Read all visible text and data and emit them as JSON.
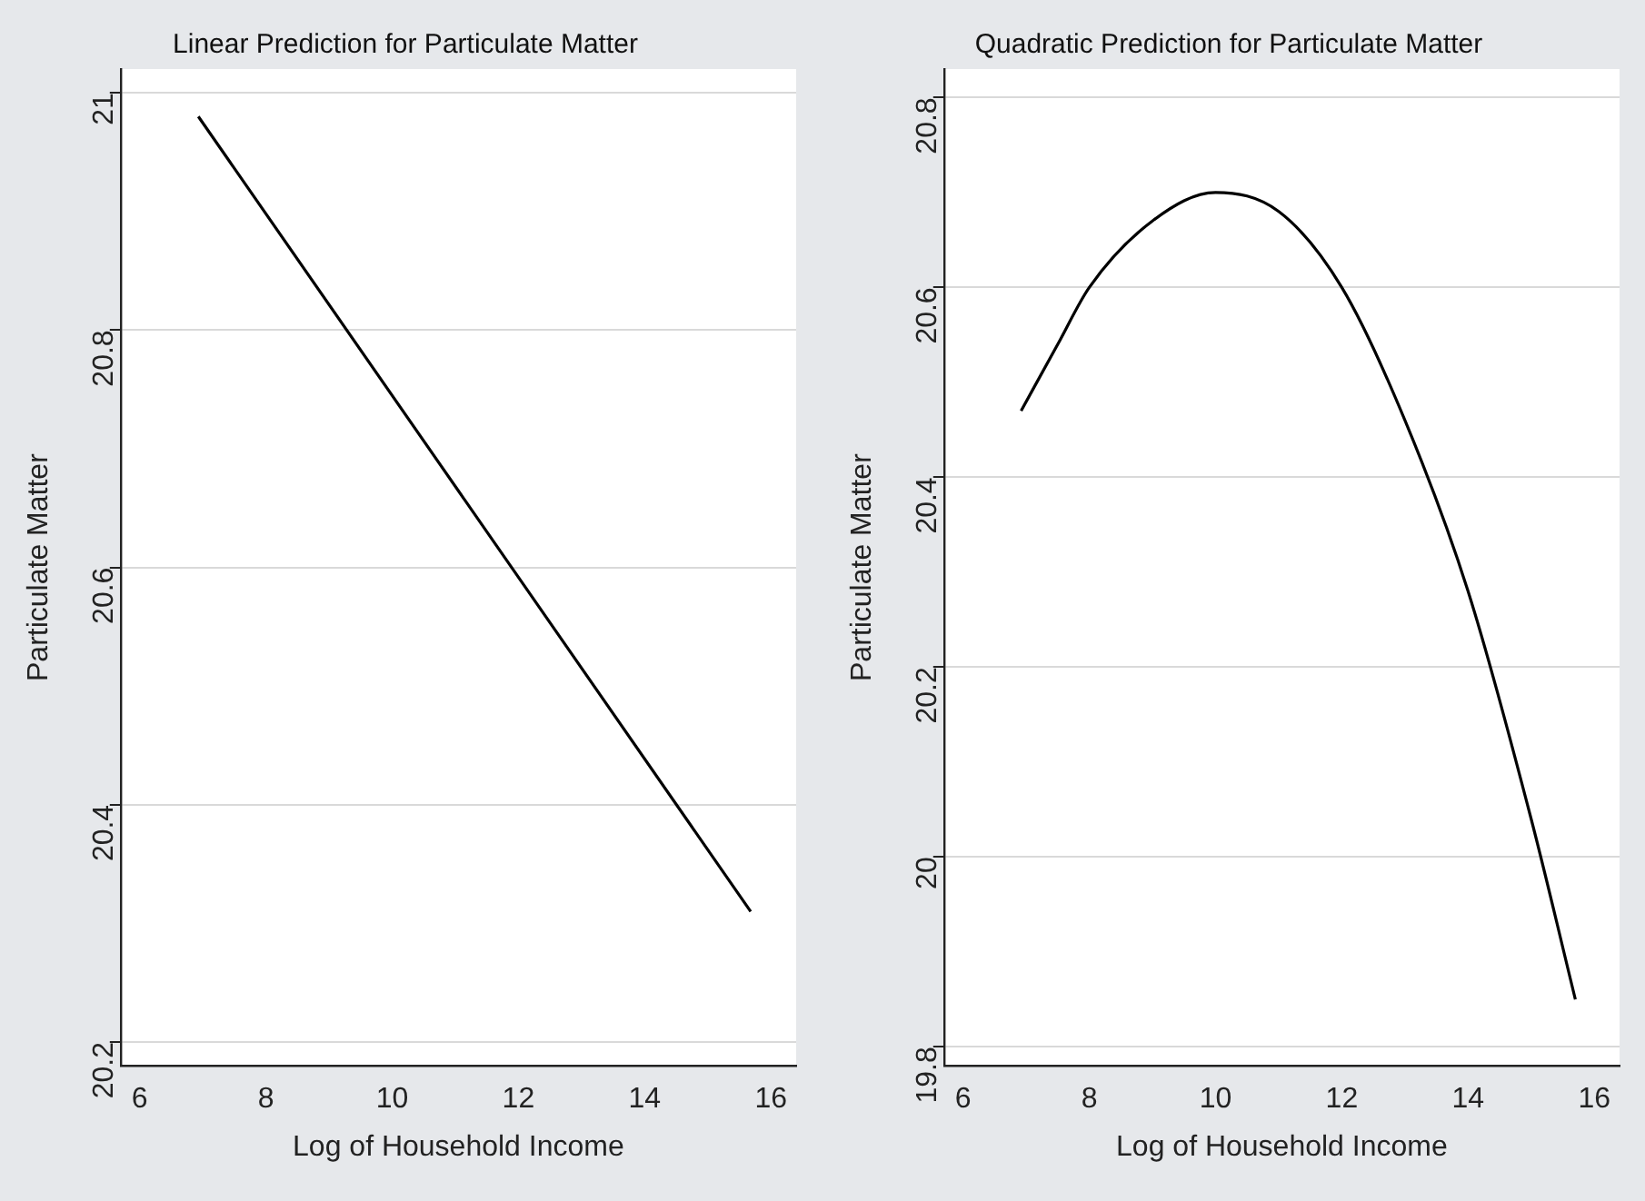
{
  "chart_data": [
    {
      "type": "line",
      "title": "Linear Prediction for Particulate Matter",
      "xlabel": "Log of Household Income",
      "ylabel": "Particulate Matter",
      "x": [
        6.93,
        15.68
      ],
      "series": [
        {
          "color": "#000000",
          "values": [
            20.98,
            20.31
          ]
        }
      ],
      "xlim": [
        5.7,
        16.4
      ],
      "xticks": [
        6,
        8,
        10,
        12,
        14,
        16
      ],
      "ylim": [
        20.18,
        21.02
      ],
      "yticks": [
        20.2,
        20.4,
        20.6,
        20.8,
        21
      ],
      "grid": "y",
      "marker": "none",
      "line_style": "solid"
    },
    {
      "type": "line",
      "title": "Quadratic Prediction for Particulate Matter",
      "xlabel": "Log of Household Income",
      "ylabel": "Particulate Matter",
      "x": [
        6.92,
        7.5,
        8,
        9,
        10,
        11,
        12,
        13,
        14,
        15,
        15.7
      ],
      "series": [
        {
          "color": "#000000",
          "values": [
            20.47,
            20.54,
            20.6,
            20.67,
            20.7,
            20.68,
            20.6,
            20.46,
            20.28,
            20.04,
            19.85
          ]
        }
      ],
      "xlim": [
        5.7,
        16.4
      ],
      "xticks": [
        6,
        8,
        10,
        12,
        14,
        16
      ],
      "ylim": [
        19.78,
        20.83
      ],
      "yticks": [
        19.8,
        20,
        20.2,
        20.4,
        20.6,
        20.8
      ],
      "grid": "y",
      "marker": "none",
      "line_style": "solid"
    }
  ]
}
